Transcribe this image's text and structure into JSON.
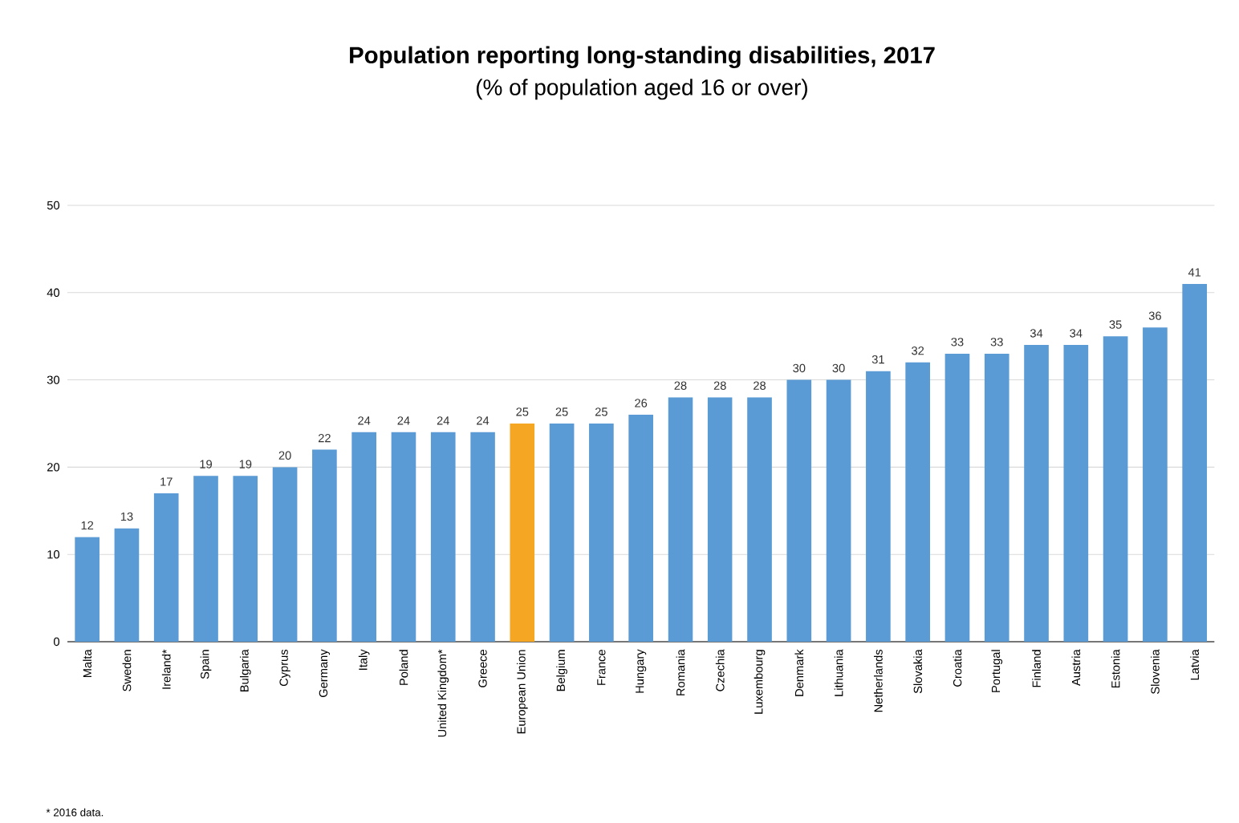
{
  "chart_data": {
    "type": "bar",
    "title": "Population reporting long-standing disabilities, 2017",
    "subtitle": "(% of population aged 16 or over)",
    "categories": [
      "Malta",
      "Sweden",
      "Ireland*",
      "Spain",
      "Bulgaria",
      "Cyprus",
      "Germany",
      "Italy",
      "Poland",
      "United Kingdom*",
      "Greece",
      "European Union",
      "Belgium",
      "France",
      "Hungary",
      "Romania",
      "Czechia",
      "Luxembourg",
      "Denmark",
      "Lithuania",
      "Netherlands",
      "Slovakia",
      "Croatia",
      "Portugal",
      "Finland",
      "Austria",
      "Estonia",
      "Slovenia",
      "Latvia"
    ],
    "values": [
      12,
      13,
      17,
      19,
      19,
      20,
      22,
      24,
      24,
      24,
      24,
      25,
      25,
      25,
      26,
      28,
      28,
      28,
      30,
      30,
      31,
      32,
      33,
      33,
      34,
      34,
      35,
      36,
      41
    ],
    "colors": [
      "#5b9bd5",
      "#5b9bd5",
      "#5b9bd5",
      "#5b9bd5",
      "#5b9bd5",
      "#5b9bd5",
      "#5b9bd5",
      "#5b9bd5",
      "#5b9bd5",
      "#5b9bd5",
      "#5b9bd5",
      "#f5a623",
      "#5b9bd5",
      "#5b9bd5",
      "#5b9bd5",
      "#5b9bd5",
      "#5b9bd5",
      "#5b9bd5",
      "#5b9bd5",
      "#5b9bd5",
      "#5b9bd5",
      "#5b9bd5",
      "#5b9bd5",
      "#5b9bd5",
      "#5b9bd5",
      "#5b9bd5",
      "#5b9bd5",
      "#5b9bd5",
      "#5b9bd5"
    ],
    "ylim": [
      0,
      50
    ],
    "yticks": [
      0,
      10,
      20,
      30,
      40,
      50
    ],
    "grid": "y",
    "data_labels": true,
    "annotations": [
      "* 2016 data."
    ]
  }
}
